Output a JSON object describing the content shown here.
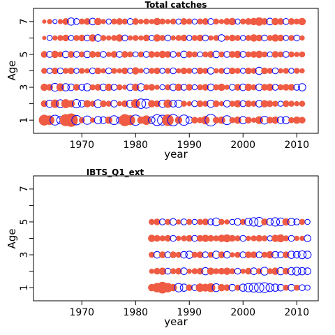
{
  "colors": {
    "positive": "#ef5b43",
    "negative": "#0000ff",
    "axis": "#000000",
    "background": "#ffffff"
  },
  "chart_data": [
    {
      "type": "scatter",
      "subtype": "bubble-residual",
      "title": "Total catches",
      "xlabel": "year",
      "ylabel": "Age",
      "xlim": [
        1961,
        2014
      ],
      "ylim": [
        0.2,
        7.8
      ],
      "x_ticks": [
        1970,
        1980,
        1990,
        2000,
        2010
      ],
      "y_ticks": [
        1,
        2,
        3,
        4,
        5,
        6,
        7
      ],
      "y_tick_labels": [
        "1",
        "",
        "3",
        "",
        "5",
        "",
        "7"
      ],
      "ages": [
        1,
        2,
        3,
        4,
        5,
        6,
        7
      ],
      "years": [
        1963,
        1964,
        1965,
        1966,
        1967,
        1968,
        1969,
        1970,
        1971,
        1972,
        1973,
        1974,
        1975,
        1976,
        1977,
        1978,
        1979,
        1980,
        1981,
        1982,
        1983,
        1984,
        1985,
        1986,
        1987,
        1988,
        1989,
        1990,
        1991,
        1992,
        1993,
        1994,
        1995,
        1996,
        1997,
        1998,
        1999,
        2000,
        2001,
        2002,
        2003,
        2004,
        2005,
        2006,
        2007,
        2008,
        2009,
        2010,
        2011
      ],
      "residuals": {
        "1": [
          1.3,
          1.0,
          -1.1,
          -0.6,
          1.6,
          2.0,
          -1.0,
          0.4,
          -0.8,
          0.3,
          -0.6,
          -0.5,
          0.6,
          -0.9,
          -0.4,
          1.6,
          1.1,
          -1.2,
          0.6,
          1.0,
          -0.5,
          -1.3,
          -1.1,
          1.5,
          -1.4,
          0.6,
          -1.2,
          -0.5,
          0.5,
          0.4,
          0.8,
          -1.5,
          0.5,
          0.6,
          -0.9,
          0.4,
          0.6,
          -0.6,
          0.5,
          0.3,
          0.7,
          -0.7,
          0.5,
          0.6,
          -0.5,
          -0.6,
          0.4,
          0.6,
          0.5
        ],
        "2": [
          0.5,
          -0.6,
          0.8,
          -0.7,
          0.9,
          0.6,
          -0.8,
          -0.5,
          0.6,
          0.4,
          -0.7,
          0.5,
          0.4,
          -0.5,
          0.3,
          0.5,
          -0.6,
          0.9,
          -1.0,
          -0.9,
          0.6,
          0.5,
          -0.6,
          0.8,
          -0.5,
          -0.6,
          0.4,
          0.3,
          -0.4,
          0.5,
          0.4,
          -0.6,
          0.5,
          0.3,
          -0.5,
          0.4,
          0.6,
          -0.4,
          0.5,
          0.4,
          -0.5,
          0.6,
          0.5,
          0.4,
          -0.3,
          0.5,
          0.4,
          0.3,
          0.4
        ],
        "3": [
          0.6,
          0.5,
          -0.7,
          0.7,
          -0.6,
          -0.5,
          0.5,
          -0.4,
          -0.6,
          0.4,
          0.5,
          -0.5,
          0.6,
          -0.4,
          0.4,
          0.3,
          -0.5,
          0.6,
          -0.6,
          0.4,
          0.5,
          0.3,
          -0.3,
          0.4,
          -0.5,
          0.6,
          -0.4,
          0.5,
          -0.3,
          0.4,
          0.5,
          -0.5,
          0.4,
          0.6,
          0.3,
          -0.4,
          0.5,
          -0.5,
          0.6,
          0.4,
          -0.5,
          0.5,
          0.6,
          -0.4,
          0.4,
          0.5,
          0.5,
          -0.4,
          -0.6
        ],
        "4": [
          0.4,
          -0.3,
          0.5,
          -0.4,
          0.4,
          0.5,
          -0.3,
          0.4,
          0.3,
          -0.4,
          0.5,
          0.3,
          -0.4,
          0.4,
          0.3,
          0.5,
          -0.3,
          0.6,
          0.3,
          -0.3,
          0.4,
          0.5,
          -0.3,
          0.4,
          -0.4,
          0.3,
          0.5,
          0.4,
          -0.3,
          0.5,
          0.4,
          -0.5,
          0.3,
          0.4,
          -0.4,
          0.5,
          0.4,
          -0.3,
          0.5,
          0.4,
          -0.6,
          0.5,
          0.4,
          -0.4,
          0.3,
          0.4,
          -0.3,
          0.4,
          0.3
        ],
        "5": [
          0.5,
          -0.4,
          0.6,
          0.4,
          -0.5,
          0.5,
          -0.4,
          0.4,
          -0.5,
          0.5,
          0.4,
          -0.4,
          0.3,
          0.5,
          -0.4,
          0.5,
          0.4,
          -0.3,
          0.4,
          -0.4,
          0.5,
          0.4,
          0.6,
          0.5,
          -0.4,
          0.3,
          -0.5,
          0.5,
          0.4,
          -0.3,
          0.4,
          0.5,
          -0.5,
          0.4,
          -0.4,
          0.5,
          0.6,
          -0.4,
          0.4,
          0.5,
          0.6,
          0.4,
          -0.3,
          0.5,
          0.4,
          -0.4,
          0.4,
          0.3,
          0.4
        ],
        "6": [
          0.2,
          -0.3,
          0.3,
          0.4,
          0.5,
          -0.3,
          0.4,
          0.5,
          -0.4,
          0.6,
          -0.5,
          0.4,
          0.3,
          0.4,
          0.6,
          -0.4,
          0.3,
          0.4,
          0.3,
          0.5,
          -0.3,
          0.6,
          0.4,
          -0.4,
          0.3,
          0.4,
          0.5,
          -0.3,
          0.4,
          0.5,
          -0.4,
          0.3,
          0.4,
          -0.5,
          0.3,
          0.5,
          0.4,
          -0.3,
          0.4,
          0.6,
          0.5,
          -0.4,
          0.4,
          0.6,
          0.5,
          -0.3,
          0.4,
          -0.4,
          0.3
        ],
        "7": [
          0.2,
          0.3,
          -0.2,
          0.3,
          0.5,
          -0.6,
          -0.4,
          0.4,
          0.5,
          -0.5,
          0.6,
          0.3,
          -0.3,
          0.4,
          0.5,
          0.4,
          -0.4,
          0.5,
          0.3,
          0.4,
          0.3,
          0.6,
          0.4,
          0.3,
          0.4,
          -0.3,
          0.5,
          0.4,
          -0.3,
          0.4,
          0.5,
          -0.4,
          0.4,
          0.3,
          0.5,
          0.6,
          -0.3,
          0.4,
          0.5,
          0.6,
          0.8,
          0.5,
          -0.5,
          0.6,
          0.5,
          -0.4,
          0.5,
          0.4,
          0.6
        ]
      }
    },
    {
      "type": "scatter",
      "subtype": "bubble-residual",
      "title": "IBTS_Q1_ext",
      "xlabel": "year",
      "ylabel": "Age",
      "xlim": [
        1961,
        2014
      ],
      "ylim": [
        0.2,
        7.8
      ],
      "x_ticks": [
        1970,
        1980,
        1990,
        2000,
        2010
      ],
      "y_ticks": [
        1,
        2,
        3,
        4,
        5,
        6,
        7
      ],
      "y_tick_labels": [
        "1",
        "",
        "3",
        "",
        "5",
        "",
        "7"
      ],
      "ages": [
        1,
        2,
        3,
        4,
        5
      ],
      "years": [
        1983,
        1984,
        1985,
        1986,
        1987,
        1988,
        1989,
        1990,
        1991,
        1992,
        1993,
        1994,
        1995,
        1996,
        1997,
        1998,
        1999,
        2000,
        2001,
        2002,
        2003,
        2004,
        2005,
        2006,
        2007,
        2008,
        2009,
        2010,
        2011,
        2012
      ],
      "residuals": {
        "1": [
          0.6,
          1.0,
          1.5,
          1.0,
          0.6,
          -0.8,
          -0.6,
          0.5,
          -0.4,
          0.8,
          0.7,
          0.9,
          -0.7,
          0.6,
          0.5,
          -0.5,
          0.4,
          -0.6,
          -0.8,
          -0.9,
          -1.0,
          -1.1,
          -0.7,
          -0.6,
          -0.5,
          0.4,
          -0.5,
          0.4,
          -0.4,
          -0.3
        ],
        "2": [
          0.3,
          0.5,
          0.6,
          -0.4,
          0.4,
          0.5,
          -0.5,
          0.3,
          0.4,
          0.5,
          -0.6,
          0.6,
          0.4,
          0.5,
          0.6,
          0.4,
          -0.4,
          0.3,
          0.5,
          -0.5,
          0.4,
          -0.7,
          0.4,
          0.6,
          -0.6,
          0.5,
          -0.6,
          -0.7,
          -0.6,
          -0.5
        ],
        "3": [
          0.4,
          -0.5,
          0.5,
          -0.4,
          0.5,
          0.4,
          -0.5,
          -0.6,
          0.4,
          0.5,
          -0.4,
          0.4,
          -0.6,
          0.5,
          -0.5,
          0.3,
          0.4,
          -0.4,
          0.5,
          0.5,
          -0.4,
          0.4,
          0.6,
          -0.5,
          -0.4,
          0.5,
          -0.6,
          -0.5,
          -0.7,
          -0.6
        ],
        "4": [
          0.6,
          0.5,
          0.4,
          0.5,
          -0.4,
          0.3,
          0.4,
          0.5,
          -0.4,
          0.5,
          0.6,
          0.5,
          0.4,
          0.6,
          0.7,
          0.5,
          0.4,
          -0.4,
          0.3,
          0.4,
          0.5,
          0.4,
          -0.3,
          0.6,
          0.7,
          0.4,
          -0.4,
          0.3,
          0.3,
          -0.5
        ],
        "5": [
          0.4,
          0.5,
          -0.4,
          0.4,
          -0.5,
          0.3,
          -0.4,
          0.4,
          -0.3,
          0.4,
          0.5,
          -0.4,
          -0.7,
          0.4,
          0.3,
          -0.3,
          -0.5,
          0.4,
          -0.6,
          -0.8,
          -0.9,
          0.5,
          -0.5,
          -0.8,
          -0.7,
          0.6,
          -0.6,
          -0.4,
          0.4,
          -0.3
        ]
      }
    }
  ]
}
